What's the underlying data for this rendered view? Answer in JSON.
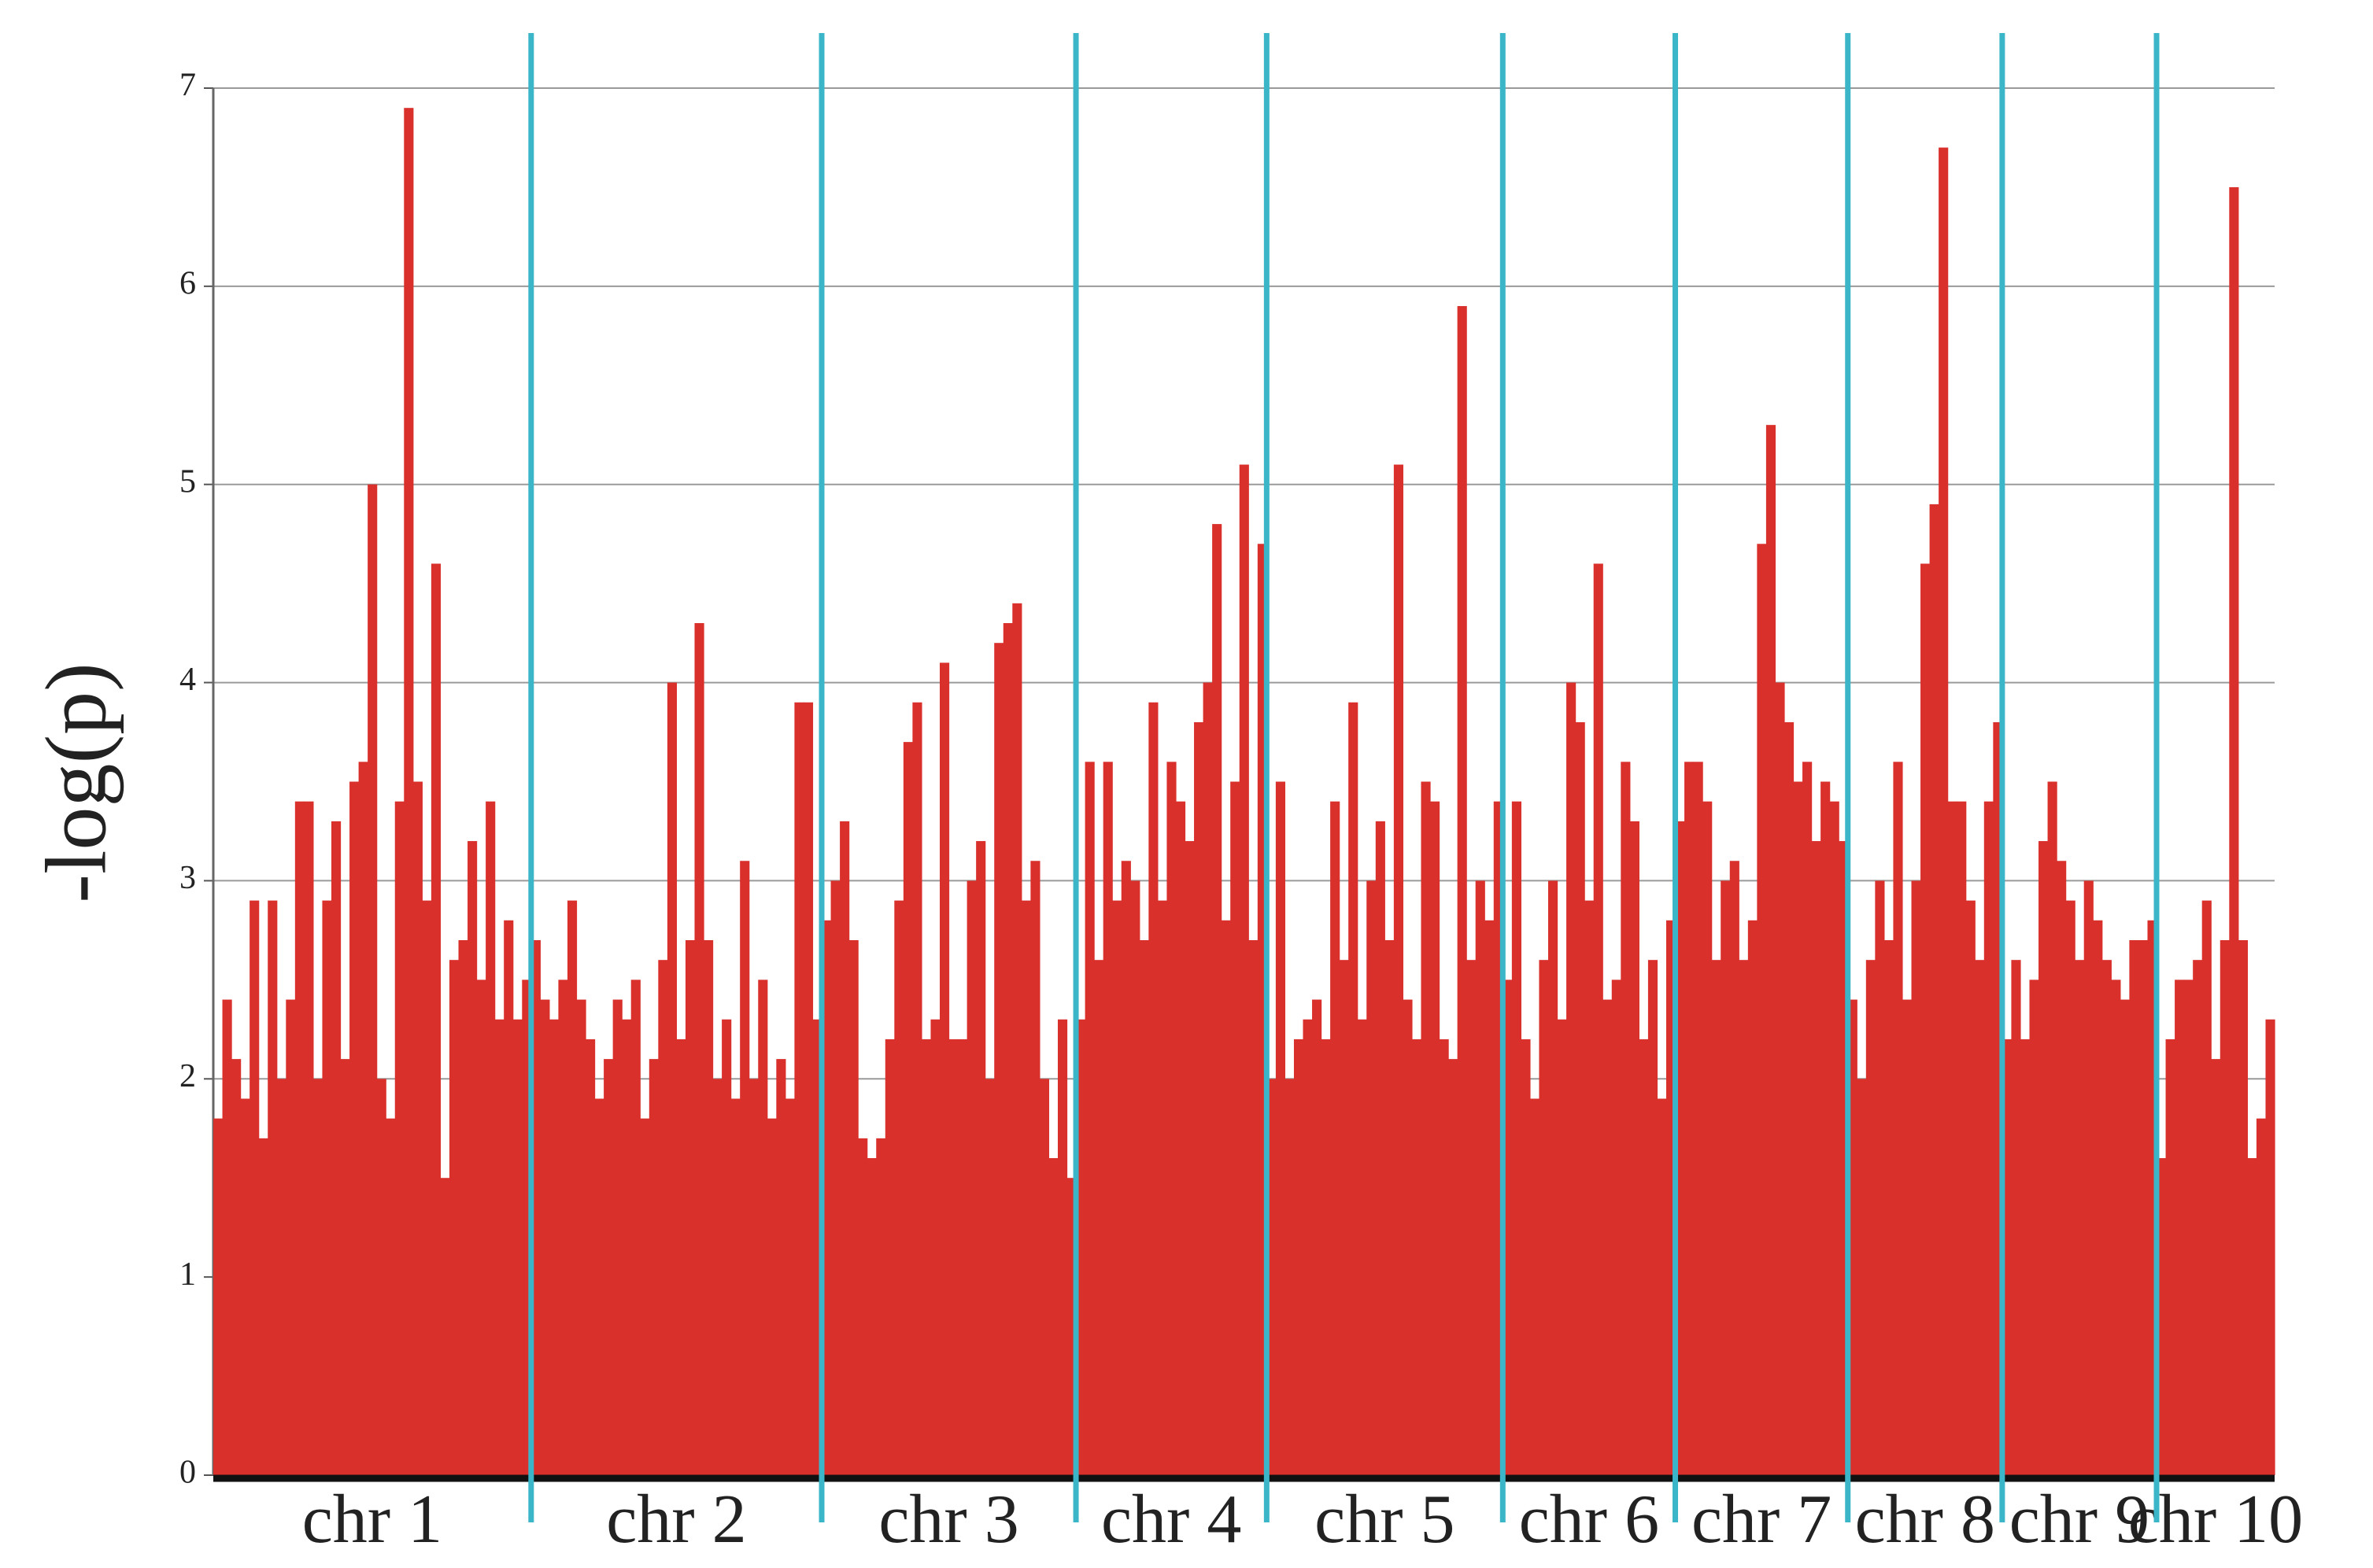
{
  "chart_data": {
    "type": "bar",
    "y_label": "-log(p)",
    "ylim": [
      0,
      7
    ],
    "yticks": [
      0,
      1,
      2,
      3,
      4,
      5,
      6,
      7
    ],
    "grid": true,
    "color": "#d9302c",
    "series": [
      {
        "name": "chr 1",
        "values": [
          1.8,
          2.4,
          2.1,
          1.9,
          2.9,
          1.7,
          2.9,
          2.0,
          2.4,
          3.4,
          3.4,
          2.0,
          2.9,
          3.3,
          2.1,
          3.5,
          3.6,
          5.0,
          2.0,
          1.8,
          3.4,
          6.9,
          3.5,
          2.9,
          4.6,
          1.5,
          2.6,
          2.7,
          3.2,
          2.5,
          3.4,
          2.3,
          2.8,
          2.3,
          2.5
        ]
      },
      {
        "name": "chr 2",
        "values": [
          2.7,
          2.4,
          2.3,
          2.5,
          2.9,
          2.4,
          2.2,
          1.9,
          2.1,
          2.4,
          2.3,
          2.5,
          1.8,
          2.1,
          2.6,
          4.0,
          2.2,
          2.7,
          4.3,
          2.7,
          2.0,
          2.3,
          1.9,
          3.1,
          2.0,
          2.5,
          1.8,
          2.1,
          1.9,
          3.9,
          3.9,
          2.3
        ]
      },
      {
        "name": "chr 3",
        "values": [
          2.8,
          3.0,
          3.3,
          2.7,
          1.7,
          1.6,
          1.7,
          2.2,
          2.9,
          3.7,
          3.9,
          2.2,
          2.3,
          4.1,
          2.2,
          2.2,
          3.0,
          3.2,
          2.0,
          4.2,
          4.3,
          4.4,
          2.9,
          3.1,
          2.0,
          1.6,
          2.3,
          1.5
        ]
      },
      {
        "name": "chr 4",
        "values": [
          2.3,
          3.6,
          2.6,
          3.6,
          2.9,
          3.1,
          3.0,
          2.7,
          3.9,
          2.9,
          3.6,
          3.4,
          3.2,
          3.8,
          4.0,
          4.8,
          2.8,
          3.5,
          5.1,
          2.7,
          4.7
        ]
      },
      {
        "name": "chr 5",
        "values": [
          2.0,
          3.5,
          2.0,
          2.2,
          2.3,
          2.4,
          2.2,
          3.4,
          2.6,
          3.9,
          2.3,
          3.0,
          3.3,
          2.7,
          5.1,
          2.4,
          2.2,
          3.5,
          3.4,
          2.2,
          2.1,
          5.9,
          2.6,
          3.0,
          2.8,
          3.4
        ]
      },
      {
        "name": "chr 6",
        "values": [
          2.5,
          3.4,
          2.2,
          1.9,
          2.6,
          3.0,
          2.3,
          4.0,
          3.8,
          2.9,
          4.6,
          2.4,
          2.5,
          3.6,
          3.3,
          2.2,
          2.6,
          1.9,
          2.8
        ]
      },
      {
        "name": "chr 7",
        "values": [
          3.3,
          3.6,
          3.6,
          3.4,
          2.6,
          3.0,
          3.1,
          2.6,
          2.8,
          4.7,
          5.3,
          4.0,
          3.8,
          3.5,
          3.6,
          3.2,
          3.5,
          3.4,
          3.2
        ]
      },
      {
        "name": "chr 8",
        "values": [
          2.4,
          2.0,
          2.6,
          3.0,
          2.7,
          3.6,
          2.4,
          3.0,
          4.6,
          4.9,
          6.7,
          3.4,
          3.4,
          2.9,
          2.6,
          3.4,
          3.8
        ]
      },
      {
        "name": "chr 9",
        "values": [
          2.2,
          2.6,
          2.2,
          2.5,
          3.2,
          3.5,
          3.1,
          2.9,
          2.6,
          3.0,
          2.8,
          2.6,
          2.5,
          2.4,
          2.7,
          2.7,
          2.8
        ]
      },
      {
        "name": "chr 10",
        "values": [
          1.6,
          2.2,
          2.5,
          2.5,
          2.6,
          2.9,
          2.1,
          2.7,
          6.5,
          2.7,
          1.6,
          1.8,
          2.3
        ]
      }
    ]
  }
}
